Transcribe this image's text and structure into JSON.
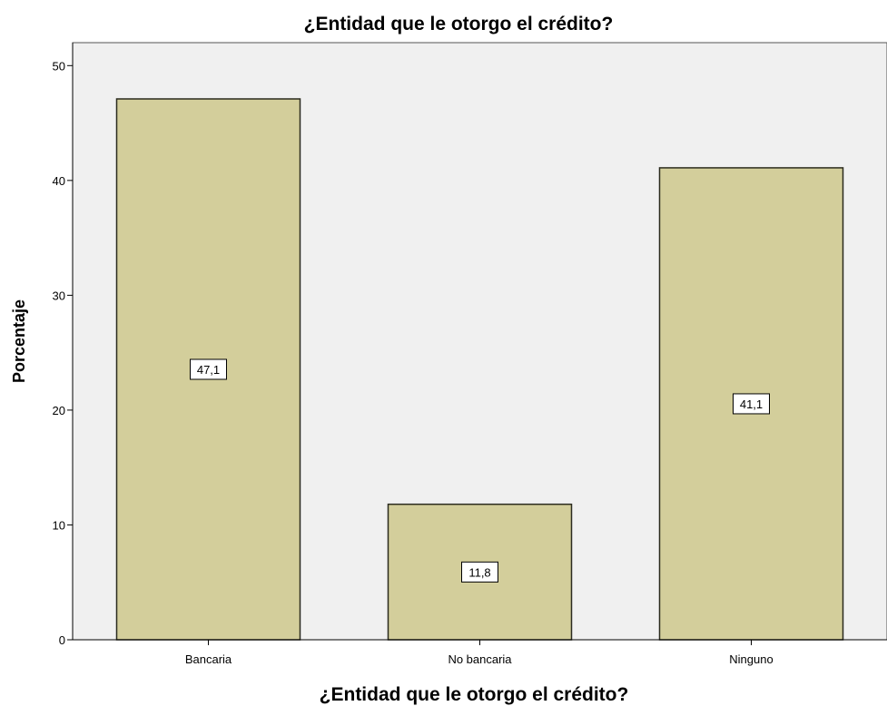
{
  "chart_data": {
    "type": "bar",
    "title": "¿Entidad  que le otorgo el crédito?",
    "xlabel": "¿Entidad  que le otorgo el crédito?",
    "ylabel": "Porcentaje",
    "categories": [
      "Bancaria",
      "No bancaria",
      "Ninguno"
    ],
    "values": [
      47.1,
      11.8,
      41.1
    ],
    "data_labels": [
      "47,1",
      "11,8",
      "41,1"
    ],
    "yticks": [
      0,
      10,
      20,
      30,
      40,
      50
    ],
    "ylim": [
      0,
      52
    ],
    "grid": false,
    "legend": "none",
    "colors": {
      "plot_background": "#f0f0f0",
      "bar_fill": "#d3ce9b",
      "bar_stroke": "#2b2b1e",
      "label_box": "#ffffff"
    }
  }
}
